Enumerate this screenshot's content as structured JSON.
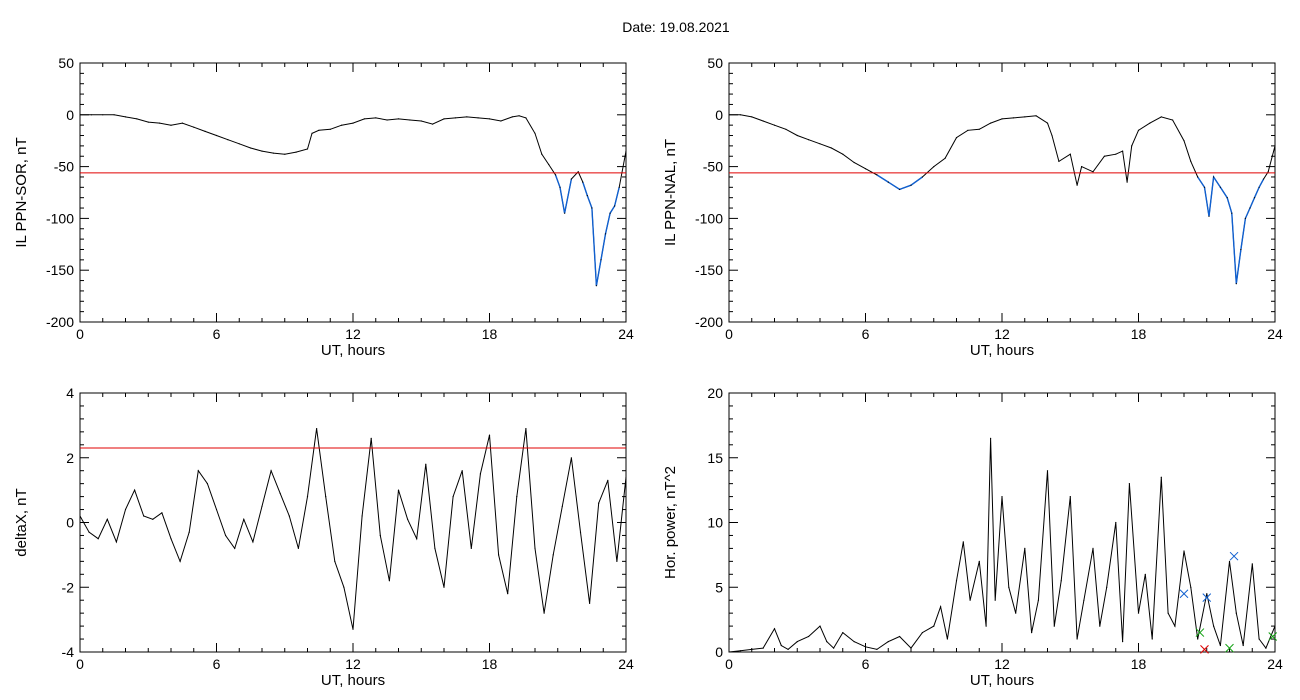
{
  "header": {
    "date_label": "Date:",
    "date_value": "19.08.2021"
  },
  "colors": {
    "trace": "#000000",
    "highlight": "#1060d0",
    "threshold": "#e00000",
    "marker_blue": "#1060d0",
    "marker_red": "#e00000",
    "marker_green": "#10a010"
  },
  "chart_data": [
    {
      "id": "sor",
      "type": "line",
      "title": "",
      "xlabel": "UT, hours",
      "ylabel": "IL PPN-SOR, nT",
      "xlim": [
        0,
        24
      ],
      "ylim": [
        -200,
        50
      ],
      "xticks": [
        0,
        6,
        12,
        18,
        24
      ],
      "yticks": [
        50,
        0,
        -50,
        -100,
        -150,
        -200
      ],
      "threshold": -56,
      "series": [
        {
          "x": [
            0,
            0.5,
            1,
            1.5,
            2,
            2.5,
            3,
            3.5,
            4,
            4.5,
            5,
            5.5,
            6,
            6.5,
            7,
            7.5,
            8,
            8.5,
            9,
            9.5,
            10,
            10.2,
            10.5,
            11,
            11.5,
            12,
            12.5,
            13,
            13.5,
            14,
            14.5,
            15,
            15.5,
            16,
            16.5,
            17,
            17.5,
            18,
            18.5,
            19,
            19.3,
            19.6,
            20,
            20.3,
            20.6,
            20.9,
            21.1,
            21.3,
            21.6,
            21.9,
            22.1,
            22.3,
            22.5,
            22.7,
            22.9,
            23.1,
            23.3,
            23.5,
            23.7,
            24
          ],
          "y": [
            0,
            0,
            0,
            0,
            -2,
            -4,
            -7,
            -8,
            -10,
            -8,
            -12,
            -16,
            -20,
            -24,
            -28,
            -32,
            -35,
            -37,
            -38,
            -36,
            -33,
            -18,
            -15,
            -14,
            -10,
            -8,
            -4,
            -3,
            -5,
            -4,
            -5,
            -6,
            -9,
            -4,
            -3,
            -2,
            -3,
            -4,
            -6,
            -2,
            -1,
            -3,
            -18,
            -38,
            -48,
            -58,
            -70,
            -95,
            -62,
            -55,
            -65,
            -78,
            -90,
            -165,
            -140,
            -115,
            -95,
            -88,
            -70,
            -35
          ]
        }
      ]
    },
    {
      "id": "nal",
      "type": "line",
      "title": "",
      "xlabel": "UT, hours",
      "ylabel": "IL PPN-NAL, nT",
      "xlim": [
        0,
        24
      ],
      "ylim": [
        -200,
        50
      ],
      "xticks": [
        0,
        6,
        12,
        18,
        24
      ],
      "yticks": [
        50,
        0,
        -50,
        -100,
        -150,
        -200
      ],
      "threshold": -56,
      "series": [
        {
          "x": [
            0,
            0.5,
            1,
            1.5,
            2,
            2.5,
            3,
            3.5,
            4,
            4.5,
            5,
            5.5,
            6,
            6.5,
            7,
            7.5,
            8,
            8.5,
            9,
            9.5,
            10,
            10.5,
            11,
            11.5,
            12,
            12.5,
            13,
            13.5,
            14,
            14.2,
            14.5,
            15,
            15.3,
            15.5,
            16,
            16.5,
            17,
            17.3,
            17.5,
            17.7,
            18,
            18.5,
            19,
            19.5,
            20,
            20.3,
            20.6,
            20.9,
            21.1,
            21.3,
            21.6,
            21.9,
            22.1,
            22.3,
            22.5,
            22.7,
            22.9,
            23.1,
            23.3,
            23.5,
            23.7,
            24
          ],
          "y": [
            0,
            0,
            -2,
            -6,
            -10,
            -14,
            -20,
            -24,
            -28,
            -32,
            -38,
            -46,
            -52,
            -58,
            -65,
            -72,
            -68,
            -60,
            -50,
            -42,
            -22,
            -15,
            -14,
            -8,
            -4,
            -3,
            -2,
            -1,
            -8,
            -20,
            -45,
            -38,
            -68,
            -50,
            -55,
            -40,
            -38,
            -35,
            -65,
            -30,
            -15,
            -8,
            -2,
            -5,
            -25,
            -45,
            -60,
            -70,
            -98,
            -60,
            -70,
            -80,
            -95,
            -163,
            -130,
            -100,
            -90,
            -80,
            -70,
            -62,
            -55,
            -30
          ]
        }
      ]
    },
    {
      "id": "deltax",
      "type": "line",
      "title": "",
      "xlabel": "UT, hours",
      "ylabel": "deltaX, nT",
      "xlim": [
        0,
        24
      ],
      "ylim": [
        -4,
        4
      ],
      "xticks": [
        0,
        6,
        12,
        18,
        24
      ],
      "yticks": [
        4,
        2,
        0,
        -2,
        -4
      ],
      "threshold": 2.3,
      "series": [
        {
          "x": [
            0,
            0.4,
            0.8,
            1.2,
            1.6,
            2,
            2.4,
            2.8,
            3.2,
            3.6,
            4,
            4.4,
            4.8,
            5.2,
            5.6,
            6,
            6.4,
            6.8,
            7.2,
            7.6,
            8,
            8.4,
            8.8,
            9.2,
            9.6,
            10,
            10.4,
            10.8,
            11.2,
            11.6,
            12,
            12.4,
            12.8,
            13.2,
            13.6,
            14,
            14.4,
            14.8,
            15.2,
            15.6,
            16,
            16.4,
            16.8,
            17.2,
            17.6,
            18,
            18.4,
            18.8,
            19.2,
            19.6,
            20,
            20.4,
            20.8,
            21.2,
            21.6,
            22,
            22.4,
            22.8,
            23.2,
            23.6,
            24
          ],
          "y": [
            0.2,
            -0.3,
            -0.5,
            0.1,
            -0.6,
            0.4,
            1.0,
            0.2,
            0.1,
            0.3,
            -0.5,
            -1.2,
            -0.3,
            1.6,
            1.2,
            0.4,
            -0.4,
            -0.8,
            0.1,
            -0.6,
            0.5,
            1.6,
            0.9,
            0.2,
            -0.8,
            0.8,
            2.9,
            0.8,
            -1.2,
            -2.0,
            -3.3,
            0.2,
            2.6,
            -0.4,
            -1.8,
            1.0,
            0.1,
            -0.5,
            1.8,
            -0.8,
            -2.0,
            0.8,
            1.6,
            -0.8,
            1.5,
            2.7,
            -1.0,
            -2.2,
            0.8,
            2.9,
            -0.8,
            -2.8,
            -1.0,
            0.5,
            2.0,
            -0.3,
            -2.5,
            0.6,
            1.3,
            -1.2,
            1.4
          ]
        }
      ]
    },
    {
      "id": "power",
      "type": "line",
      "title": "",
      "xlabel": "UT, hours",
      "ylabel": "Hor. power, nT^2",
      "xlim": [
        0,
        24
      ],
      "ylim": [
        0,
        20
      ],
      "xticks": [
        0,
        6,
        12,
        18,
        24
      ],
      "yticks": [
        20,
        15,
        10,
        5,
        0
      ],
      "series": [
        {
          "x": [
            0,
            0.5,
            1,
            1.5,
            2,
            2.3,
            2.6,
            3,
            3.5,
            4,
            4.3,
            4.6,
            5,
            5.5,
            6,
            6.5,
            7,
            7.5,
            8,
            8.5,
            9,
            9.3,
            9.6,
            10,
            10.3,
            10.6,
            11,
            11.3,
            11.5,
            11.7,
            12,
            12.3,
            12.6,
            13,
            13.3,
            13.6,
            14,
            14.3,
            14.6,
            15,
            15.3,
            15.6,
            16,
            16.3,
            16.6,
            17,
            17.3,
            17.6,
            18,
            18.3,
            18.6,
            19,
            19.3,
            19.6,
            20,
            20.3,
            20.6,
            21,
            21.3,
            21.6,
            22,
            22.3,
            22.6,
            23,
            23.3,
            23.6,
            24
          ],
          "y": [
            0,
            0.1,
            0.2,
            0.3,
            1.8,
            0.5,
            0.2,
            0.8,
            1.2,
            2.0,
            0.8,
            0.3,
            1.5,
            0.8,
            0.4,
            0.2,
            0.8,
            1.2,
            0.3,
            1.5,
            2.0,
            3.5,
            1.0,
            5.5,
            8.5,
            4.0,
            7.0,
            2.0,
            16.5,
            4.0,
            12.0,
            5.0,
            3.0,
            8.0,
            1.5,
            4.0,
            14.0,
            2.0,
            5.5,
            12.0,
            1.0,
            4.0,
            8.0,
            2.0,
            5.0,
            10.0,
            0.8,
            13.0,
            3.0,
            6.0,
            1.0,
            13.5,
            3.0,
            2.0,
            7.8,
            5.0,
            1.0,
            4.5,
            2.0,
            0.5,
            7.0,
            3.0,
            0.5,
            6.8,
            1.0,
            0.3,
            2.0
          ]
        }
      ],
      "markers": [
        {
          "x": 20.0,
          "y": 4.5,
          "color": "blue"
        },
        {
          "x": 21.0,
          "y": 4.2,
          "color": "blue"
        },
        {
          "x": 22.2,
          "y": 7.4,
          "color": "blue"
        },
        {
          "x": 20.7,
          "y": 1.5,
          "color": "green"
        },
        {
          "x": 20.9,
          "y": 0.2,
          "color": "red"
        },
        {
          "x": 22.0,
          "y": 0.3,
          "color": "green"
        },
        {
          "x": 23.9,
          "y": 1.2,
          "color": "green"
        }
      ]
    }
  ]
}
